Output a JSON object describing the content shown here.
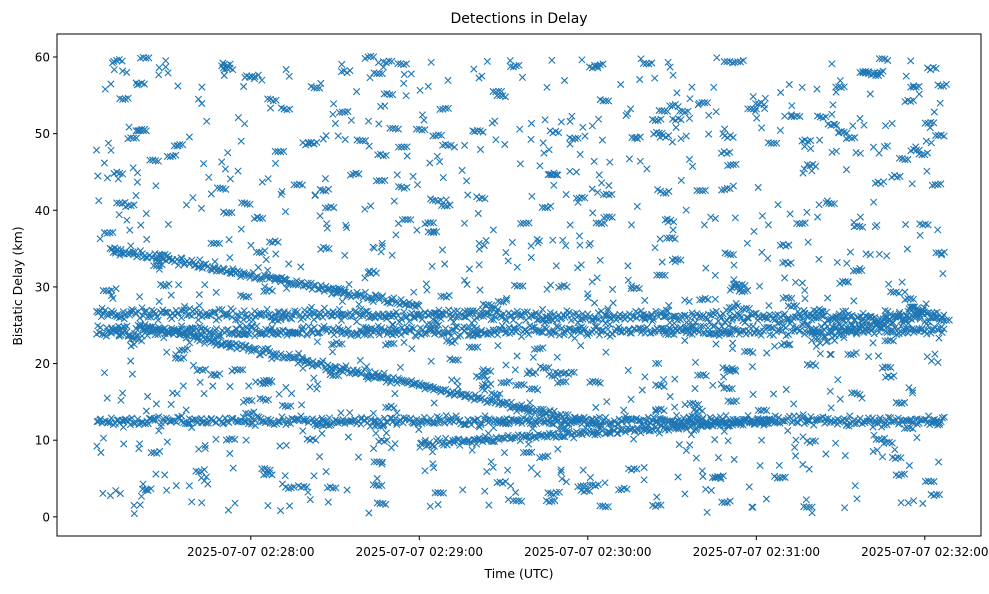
{
  "chart_data": {
    "type": "scatter",
    "title": "Detections in Delay",
    "xlabel": "Time (UTC)",
    "ylabel": "Bistatic Delay (km)",
    "marker": "x",
    "marker_color": "#1f77b4",
    "grid": false,
    "legend": "none",
    "xlim": [
      "2025-07-07 02:26:51",
      "2025-07-07 02:32:20"
    ],
    "ylim": [
      -2.5,
      63
    ],
    "x_ticks": [
      "2025-07-07 02:28:00",
      "2025-07-07 02:29:00",
      "2025-07-07 02:30:00",
      "2025-07-07 02:31:00",
      "2025-07-07 02:32:00"
    ],
    "y_ticks": [
      0,
      10,
      20,
      30,
      40,
      50,
      60
    ],
    "time_range": [
      "2025-07-07 02:27:05",
      "2025-07-07 02:32:07"
    ],
    "tracks": [
      {
        "time_start": "2025-07-07 02:27:05",
        "time_end": "2025-07-07 02:32:07",
        "delay_start": 26.5,
        "delay_end": 26.0,
        "jitter_km": 0.6
      },
      {
        "time_start": "2025-07-07 02:27:05",
        "time_end": "2025-07-07 02:32:07",
        "delay_start": 24.0,
        "delay_end": 24.5,
        "jitter_km": 0.6
      },
      {
        "time_start": "2025-07-07 02:27:05",
        "time_end": "2025-07-07 02:32:07",
        "delay_start": 12.5,
        "delay_end": 12.5,
        "jitter_km": 0.5
      },
      {
        "time_start": "2025-07-07 02:27:10",
        "time_end": "2025-07-07 02:29:00",
        "delay_start": 35.0,
        "delay_end": 27.5,
        "jitter_km": 0.4
      },
      {
        "time_start": "2025-07-07 02:27:20",
        "time_end": "2025-07-07 02:30:05",
        "delay_start": 25.0,
        "delay_end": 12.0,
        "jitter_km": 0.4
      },
      {
        "time_start": "2025-07-07 02:29:00",
        "time_end": "2025-07-07 02:31:05",
        "delay_start": 9.5,
        "delay_end": 12.5,
        "jitter_km": 0.4
      },
      {
        "time_start": "2025-07-07 02:31:20",
        "time_end": "2025-07-07 02:32:00",
        "delay_start": 23.0,
        "delay_end": 27.0,
        "jitter_km": 0.8
      }
    ],
    "clutter_points": 1100,
    "clutter_delay_range": [
      0.5,
      60.0
    ]
  }
}
